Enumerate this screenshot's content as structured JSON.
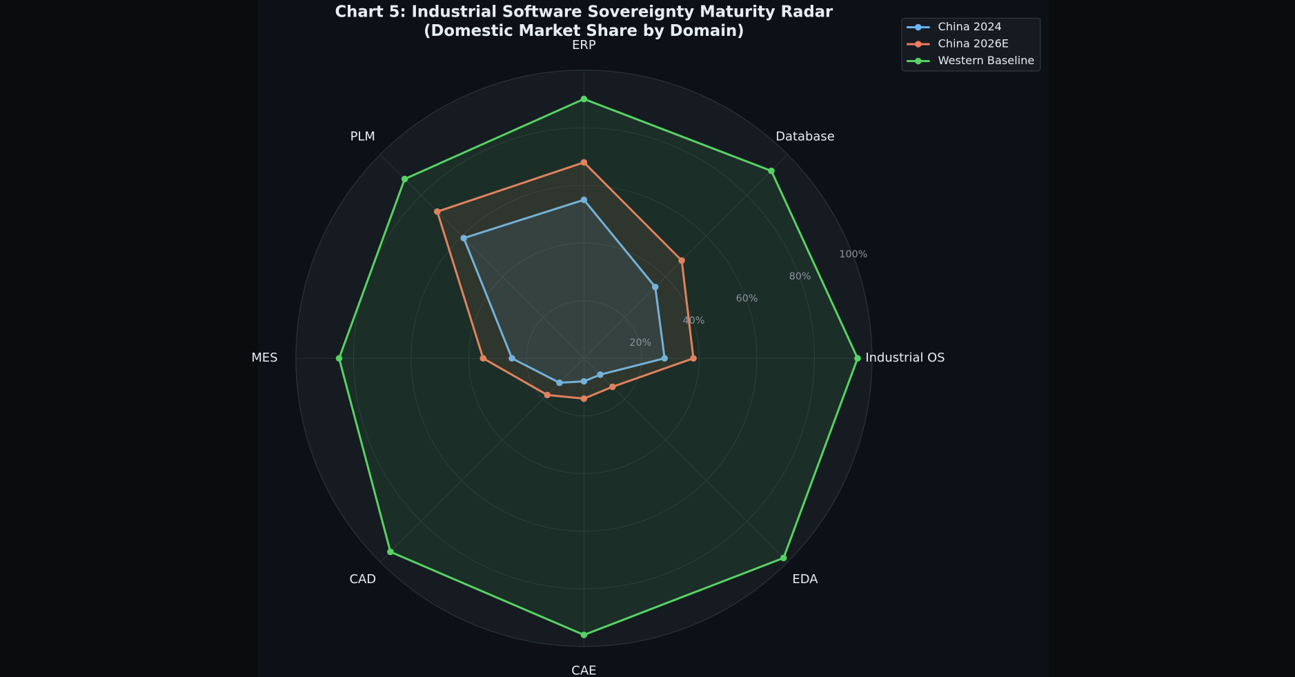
{
  "chart_data": {
    "type": "radar",
    "title": "Chart 5: Industrial Software Sovereignty Maturity Radar",
    "subtitle": "(Domestic Market Share by Domain)",
    "categories": [
      "ERP",
      "Database",
      "Industrial OS",
      "EDA",
      "CAE",
      "CAD",
      "MES",
      "PLM"
    ],
    "rlim": [
      0,
      100
    ],
    "rticks": [
      {
        "value": 20,
        "label": "20%"
      },
      {
        "value": 40,
        "label": "40%"
      },
      {
        "value": 60,
        "label": "60%"
      },
      {
        "value": 80,
        "label": "80%"
      },
      {
        "value": 100,
        "label": "100%"
      }
    ],
    "grid": true,
    "legend": "upper right",
    "series": [
      {
        "name": "China 2024",
        "color": "#6cb4f5",
        "values": [
          55,
          35,
          28,
          8,
          8,
          12,
          25,
          59
        ]
      },
      {
        "name": "China 2026E",
        "color": "#f07a5e",
        "values": [
          68,
          48,
          38,
          14,
          14,
          18,
          35,
          72
        ]
      },
      {
        "name": "Western Baseline",
        "color": "#56d364",
        "values": [
          90,
          92,
          95,
          98,
          96,
          95,
          85,
          88
        ]
      }
    ]
  }
}
